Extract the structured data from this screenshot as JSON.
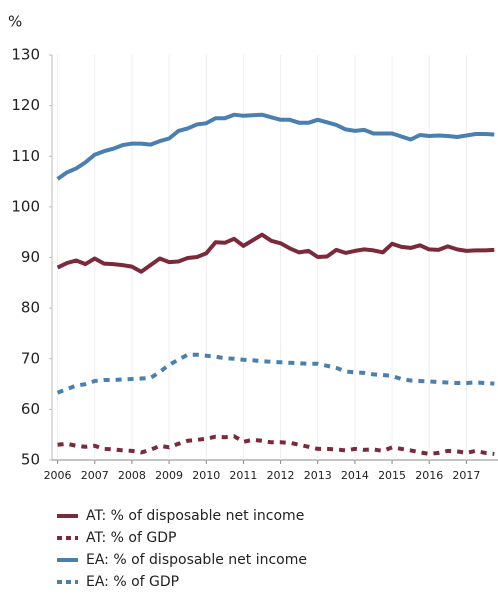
{
  "chart_data": {
    "type": "line",
    "ylabel": "%",
    "xlim": [
      2005.85,
      2017.85
    ],
    "xticks": [
      2006,
      2007,
      2008,
      2009,
      2010,
      2011,
      2012,
      2013,
      2014,
      2015,
      2016,
      2017
    ],
    "ylim": [
      50,
      130
    ],
    "yticks": [
      50,
      60,
      70,
      80,
      90,
      100,
      110,
      120,
      130
    ],
    "legend": "bottom",
    "x": [
      2006,
      2006.25,
      2006.5,
      2006.75,
      2007,
      2007.25,
      2007.5,
      2007.75,
      2008,
      2008.25,
      2008.5,
      2008.75,
      2009,
      2009.25,
      2009.5,
      2009.75,
      2010,
      2010.25,
      2010.5,
      2010.75,
      2011,
      2011.25,
      2011.5,
      2011.75,
      2012,
      2012.25,
      2012.5,
      2012.75,
      2013,
      2013.25,
      2013.5,
      2013.75,
      2014,
      2014.25,
      2014.5,
      2014.75,
      2015,
      2015.25,
      2015.5,
      2015.75,
      2016,
      2016.25,
      2016.5,
      2016.75,
      2017,
      2017.25,
      2017.5,
      2017.75
    ],
    "series": [
      {
        "name": "AT: % of disposable net income",
        "color": "#7b2a3b",
        "dash": false,
        "values": [
          88,
          88.9,
          89.4,
          88.7,
          89.8,
          88.8,
          88.7,
          88.5,
          88.2,
          87.2,
          88.5,
          89.8,
          89.1,
          89.2,
          89.9,
          90.1,
          90.8,
          93,
          92.9,
          93.7,
          92.3,
          93.4,
          94.5,
          93.3,
          92.8,
          91.8,
          91,
          91.3,
          90.1,
          90.2,
          91.5,
          90.9,
          91.3,
          91.6,
          91.4,
          91,
          92.7,
          92.1,
          91.9,
          92.4,
          91.6,
          91.5,
          92.2,
          91.6,
          91.3,
          91.4,
          91.4,
          91.5
        ]
      },
      {
        "name": "AT: % of GDP",
        "color": "#7b2a3b",
        "dash": true,
        "values": [
          53,
          53.2,
          52.8,
          52.6,
          52.8,
          52.2,
          52.1,
          51.9,
          51.8,
          51.5,
          52,
          52.8,
          52.5,
          53.2,
          53.8,
          54,
          54.2,
          54.6,
          54.5,
          54.7,
          53.6,
          54,
          53.8,
          53.5,
          53.5,
          53.4,
          53,
          52.6,
          52.2,
          52.2,
          52.1,
          51.9,
          52.2,
          52,
          52.1,
          51.8,
          52.5,
          52.2,
          51.9,
          51.5,
          51.2,
          51.4,
          51.8,
          51.7,
          51.4,
          51.8,
          51.4,
          51.2
        ]
      },
      {
        "name": "EA: % of disposable net income",
        "color": "#4a7fb0",
        "dash": false,
        "values": [
          105.5,
          106.8,
          107.6,
          108.8,
          110.3,
          111,
          111.5,
          112.2,
          112.5,
          112.5,
          112.3,
          113,
          113.5,
          115,
          115.5,
          116.3,
          116.5,
          117.5,
          117.5,
          118.2,
          118,
          118.1,
          118.2,
          117.7,
          117.2,
          117.2,
          116.6,
          116.6,
          117.2,
          116.7,
          116.2,
          115.3,
          115,
          115.2,
          114.5,
          114.5,
          114.5,
          113.9,
          113.3,
          114.2,
          114,
          114.1,
          114,
          113.8,
          114.1,
          114.4,
          114.4,
          114.3
        ]
      },
      {
        "name": "EA: % of GDP",
        "color": "#4a7fb0",
        "dash": true,
        "values": [
          63.3,
          64,
          64.7,
          65,
          65.6,
          65.8,
          65.8,
          65.9,
          66,
          66.1,
          66.2,
          67.4,
          68.8,
          69.8,
          70.8,
          70.8,
          70.6,
          70.4,
          70.1,
          70,
          69.8,
          69.7,
          69.5,
          69.4,
          69.3,
          69.2,
          69.1,
          69,
          69,
          68.6,
          68.2,
          67.5,
          67.3,
          67.2,
          66.9,
          66.8,
          66.6,
          66,
          65.7,
          65.6,
          65.5,
          65.4,
          65.3,
          65.2,
          65.2,
          65.3,
          65.2,
          65.1
        ]
      }
    ]
  }
}
